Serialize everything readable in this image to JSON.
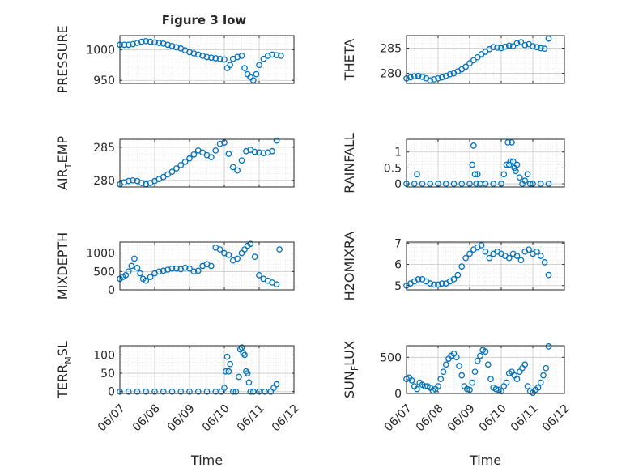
{
  "figure_title": "Figure 3 low",
  "colors": {
    "marker": "#0072BD",
    "axes": "#262626",
    "grid": "#dcdcdc",
    "background": "#ffffff"
  },
  "chart_data": [
    {
      "type": "scatter",
      "ylabel": "PRESSURE",
      "xlabel": "",
      "ylim": [
        945,
        1023
      ],
      "yticks": [
        950,
        1000
      ],
      "x": [
        "06/07 00:00",
        "06/07 03:00",
        "06/07 06:00",
        "06/07 09:00",
        "06/07 12:00",
        "06/07 15:00",
        "06/07 18:00",
        "06/07 21:00",
        "06/08 00:00",
        "06/08 03:00",
        "06/08 06:00",
        "06/08 09:00",
        "06/08 12:00",
        "06/08 15:00",
        "06/08 18:00",
        "06/08 21:00",
        "06/09 00:00",
        "06/09 03:00",
        "06/09 06:00",
        "06/09 09:00",
        "06/09 12:00",
        "06/09 15:00",
        "06/09 18:00",
        "06/09 21:00",
        "06/10 00:00",
        "06/10 02:00",
        "06/10 04:00",
        "06/10 06:00",
        "06/10 09:00",
        "06/10 12:00",
        "06/10 14:00",
        "06/10 16:00",
        "06/10 18:00",
        "06/10 20:00",
        "06/10 22:00",
        "06/11 00:00",
        "06/11 03:00",
        "06/11 06:00",
        "06/11 09:00",
        "06/11 12:00",
        "06/11 15:00"
      ],
      "y": [
        1008,
        1008,
        1008,
        1009,
        1011,
        1013,
        1014,
        1013,
        1012,
        1011,
        1010,
        1008,
        1006,
        1004,
        1002,
        999,
        996,
        994,
        992,
        990,
        988,
        987,
        986,
        985,
        984,
        970,
        975,
        985,
        988,
        990,
        970,
        960,
        955,
        950,
        960,
        975,
        985,
        990,
        992,
        991,
        990
      ]
    },
    {
      "type": "scatter",
      "ylabel": "THETA",
      "xlabel": "",
      "ylim": [
        278,
        287.5
      ],
      "yticks": [
        280,
        285
      ],
      "x": [
        "06/07 00:00",
        "06/07 03:00",
        "06/07 06:00",
        "06/07 09:00",
        "06/07 12:00",
        "06/07 15:00",
        "06/07 18:00",
        "06/07 21:00",
        "06/08 00:00",
        "06/08 03:00",
        "06/08 06:00",
        "06/08 09:00",
        "06/08 12:00",
        "06/08 15:00",
        "06/08 18:00",
        "06/08 21:00",
        "06/09 00:00",
        "06/09 03:00",
        "06/09 06:00",
        "06/09 09:00",
        "06/09 12:00",
        "06/09 15:00",
        "06/09 18:00",
        "06/09 21:00",
        "06/10 00:00",
        "06/10 03:00",
        "06/10 06:00",
        "06/10 09:00",
        "06/10 12:00",
        "06/10 15:00",
        "06/10 18:00",
        "06/10 21:00",
        "06/11 00:00",
        "06/11 03:00",
        "06/11 06:00",
        "06/11 09:00",
        "06/11 12:00"
      ],
      "y": [
        279,
        279.2,
        279.4,
        279.5,
        279.3,
        279,
        278.6,
        278.8,
        279,
        279.2,
        279.5,
        279.8,
        280,
        280.4,
        280.8,
        281.3,
        282,
        282.6,
        283.2,
        283.8,
        284.3,
        284.8,
        285.2,
        285.1,
        285,
        285.3,
        285.5,
        285.4,
        286,
        286.2,
        285.6,
        285.8,
        285.4,
        285.2,
        285,
        284.9,
        286.9
      ]
    },
    {
      "type": "scatter",
      "ylabel": "AIR_TEMP",
      "xlabel": "",
      "ylim": [
        279,
        286.2
      ],
      "yticks": [
        280,
        285
      ],
      "x": [
        "06/07 00:00",
        "06/07 03:00",
        "06/07 06:00",
        "06/07 09:00",
        "06/07 12:00",
        "06/07 15:00",
        "06/07 18:00",
        "06/07 21:00",
        "06/08 00:00",
        "06/08 03:00",
        "06/08 06:00",
        "06/08 09:00",
        "06/08 12:00",
        "06/08 15:00",
        "06/08 18:00",
        "06/08 21:00",
        "06/09 00:00",
        "06/09 03:00",
        "06/09 06:00",
        "06/09 09:00",
        "06/09 12:00",
        "06/09 15:00",
        "06/09 18:00",
        "06/09 21:00",
        "06/10 00:00",
        "06/10 03:00",
        "06/10 06:00",
        "06/10 09:00",
        "06/10 12:00",
        "06/10 15:00",
        "06/10 18:00",
        "06/10 21:00",
        "06/11 00:00",
        "06/11 03:00",
        "06/11 06:00",
        "06/11 09:00",
        "06/11 12:00"
      ],
      "y": [
        279.4,
        279.7,
        279.9,
        280,
        279.9,
        279.6,
        279.4,
        279.6,
        279.9,
        280.2,
        280.5,
        280.9,
        281.3,
        281.8,
        282.3,
        282.8,
        283.3,
        283.9,
        284.5,
        284.2,
        283.8,
        283.5,
        284.5,
        285.5,
        285.7,
        284,
        282,
        281.5,
        283,
        284.4,
        284.6,
        284.3,
        284.2,
        284.1,
        284.2,
        284.4,
        286
      ]
    },
    {
      "type": "scatter",
      "ylabel": "RAINFALL",
      "xlabel": "",
      "ylim": [
        -0.1,
        1.4
      ],
      "yticks": [
        0,
        0.5,
        1
      ],
      "x": [
        "06/07 00:00",
        "06/07 06:00",
        "06/07 08:00",
        "06/07 12:00",
        "06/07 18:00",
        "06/08 00:00",
        "06/08 06:00",
        "06/08 12:00",
        "06/08 18:00",
        "06/09 00:00",
        "06/09 02:00",
        "06/09 03:00",
        "06/09 04:00",
        "06/09 05:00",
        "06/09 06:00",
        "06/09 08:00",
        "06/09 12:00",
        "06/09 18:00",
        "06/10 00:00",
        "06/10 02:00",
        "06/10 04:00",
        "06/10 05:00",
        "06/10 06:00",
        "06/10 07:00",
        "06/10 08:00",
        "06/10 09:00",
        "06/10 10:00",
        "06/10 11:00",
        "06/10 12:00",
        "06/10 14:00",
        "06/10 16:00",
        "06/10 18:00",
        "06/10 20:00",
        "06/10 22:00",
        "06/11 00:00",
        "06/11 06:00",
        "06/11 12:00"
      ],
      "y": [
        0,
        0,
        0.3,
        0,
        0,
        0,
        0,
        0,
        0,
        0,
        0.6,
        1.2,
        0.3,
        0,
        0.3,
        0,
        0,
        0,
        0,
        0.3,
        0.6,
        1.3,
        0.6,
        0.7,
        1.3,
        0.7,
        0.5,
        0.4,
        0.6,
        0.2,
        0,
        0.1,
        0.3,
        0,
        0,
        0,
        0
      ]
    },
    {
      "type": "scatter",
      "ylabel": "MIXDEPTH",
      "xlabel": "",
      "ylim": [
        0,
        1300
      ],
      "yticks": [
        0,
        500,
        1000
      ],
      "x": [
        "06/07 00:00",
        "06/07 02:00",
        "06/07 04:00",
        "06/07 06:00",
        "06/07 08:00",
        "06/07 10:00",
        "06/07 12:00",
        "06/07 14:00",
        "06/07 16:00",
        "06/07 18:00",
        "06/07 21:00",
        "06/08 00:00",
        "06/08 03:00",
        "06/08 06:00",
        "06/08 09:00",
        "06/08 12:00",
        "06/08 15:00",
        "06/08 18:00",
        "06/08 21:00",
        "06/09 00:00",
        "06/09 03:00",
        "06/09 06:00",
        "06/09 09:00",
        "06/09 12:00",
        "06/09 15:00",
        "06/09 18:00",
        "06/09 21:00",
        "06/10 00:00",
        "06/10 03:00",
        "06/10 06:00",
        "06/10 09:00",
        "06/10 12:00",
        "06/10 14:00",
        "06/10 16:00",
        "06/10 18:00",
        "06/10 21:00",
        "06/11 00:00",
        "06/11 03:00",
        "06/11 06:00",
        "06/11 09:00",
        "06/11 12:00",
        "06/11 14:00"
      ],
      "y": [
        300,
        350,
        400,
        500,
        650,
        850,
        600,
        450,
        300,
        250,
        350,
        450,
        500,
        520,
        550,
        580,
        580,
        560,
        600,
        580,
        500,
        520,
        650,
        700,
        650,
        1150,
        1100,
        1000,
        950,
        800,
        850,
        1000,
        1100,
        1200,
        1250,
        900,
        400,
        300,
        250,
        200,
        150,
        1100
      ]
    },
    {
      "type": "scatter",
      "ylabel": "H2OMIXRA",
      "xlabel": "",
      "ylim": [
        4.8,
        7.05
      ],
      "yticks": [
        5,
        6,
        7
      ],
      "x": [
        "06/07 00:00",
        "06/07 03:00",
        "06/07 06:00",
        "06/07 09:00",
        "06/07 12:00",
        "06/07 15:00",
        "06/07 18:00",
        "06/07 21:00",
        "06/08 00:00",
        "06/08 03:00",
        "06/08 06:00",
        "06/08 09:00",
        "06/08 12:00",
        "06/08 15:00",
        "06/08 18:00",
        "06/08 21:00",
        "06/09 00:00",
        "06/09 03:00",
        "06/09 06:00",
        "06/09 09:00",
        "06/09 12:00",
        "06/09 15:00",
        "06/09 18:00",
        "06/09 21:00",
        "06/10 00:00",
        "06/10 03:00",
        "06/10 06:00",
        "06/10 09:00",
        "06/10 12:00",
        "06/10 15:00",
        "06/10 18:00",
        "06/10 21:00",
        "06/11 00:00",
        "06/11 03:00",
        "06/11 06:00",
        "06/11 09:00",
        "06/11 12:00"
      ],
      "y": [
        5,
        5.1,
        5.2,
        5.3,
        5.3,
        5.2,
        5.1,
        5.05,
        5.05,
        5.1,
        5.1,
        5.2,
        5.3,
        5.5,
        5.9,
        6.3,
        6.5,
        6.7,
        6.8,
        6.9,
        6.6,
        6.3,
        6.5,
        6.6,
        6.5,
        6.4,
        6.3,
        6.5,
        6.4,
        6.2,
        6.6,
        6.7,
        6.5,
        6.6,
        6.4,
        6.1,
        5.5
      ]
    },
    {
      "type": "scatter",
      "ylabel": "TERR_MSL",
      "xlabel": "Time",
      "ylim": [
        -5,
        125
      ],
      "yticks": [
        0,
        50,
        100
      ],
      "x": [
        "06/07 00:00",
        "06/07 06:00",
        "06/07 12:00",
        "06/07 18:00",
        "06/08 00:00",
        "06/08 06:00",
        "06/08 12:00",
        "06/08 18:00",
        "06/09 00:00",
        "06/09 06:00",
        "06/09 12:00",
        "06/09 18:00",
        "06/09 22:00",
        "06/10 00:00",
        "06/10 01:00",
        "06/10 02:00",
        "06/10 03:00",
        "06/10 04:00",
        "06/10 06:00",
        "06/10 08:00",
        "06/10 10:00",
        "06/10 11:00",
        "06/10 12:00",
        "06/10 13:00",
        "06/10 14:00",
        "06/10 15:00",
        "06/10 16:00",
        "06/10 17:00",
        "06/10 18:00",
        "06/10 20:00",
        "06/11 00:00",
        "06/11 04:00",
        "06/11 08:00",
        "06/11 10:00",
        "06/11 12:00"
      ],
      "y": [
        0,
        0,
        0,
        0,
        0,
        0,
        0,
        0,
        0,
        0,
        0,
        0,
        0,
        10,
        55,
        95,
        55,
        75,
        0,
        0,
        40,
        115,
        120,
        105,
        100,
        55,
        50,
        25,
        0,
        0,
        0,
        0,
        0,
        10,
        20
      ]
    },
    {
      "type": "scatter",
      "ylabel": "SUN_FLUX",
      "xlabel": "Time",
      "ylim": [
        0,
        660
      ],
      "yticks": [
        0,
        500
      ],
      "x": [
        "06/07 00:00",
        "06/07 02:00",
        "06/07 04:00",
        "06/07 06:00",
        "06/07 08:00",
        "06/07 10:00",
        "06/07 12:00",
        "06/07 14:00",
        "06/07 16:00",
        "06/07 18:00",
        "06/07 20:00",
        "06/07 22:00",
        "06/08 00:00",
        "06/08 02:00",
        "06/08 04:00",
        "06/08 06:00",
        "06/08 08:00",
        "06/08 10:00",
        "06/08 12:00",
        "06/08 14:00",
        "06/08 16:00",
        "06/08 18:00",
        "06/08 20:00",
        "06/08 22:00",
        "06/09 00:00",
        "06/09 02:00",
        "06/09 04:00",
        "06/09 06:00",
        "06/09 08:00",
        "06/09 10:00",
        "06/09 12:00",
        "06/09 14:00",
        "06/09 16:00",
        "06/09 18:00",
        "06/09 20:00",
        "06/09 22:00",
        "06/10 00:00",
        "06/10 02:00",
        "06/10 04:00",
        "06/10 06:00",
        "06/10 08:00",
        "06/10 10:00",
        "06/10 12:00",
        "06/10 14:00",
        "06/10 16:00",
        "06/10 18:00",
        "06/10 20:00",
        "06/10 22:00",
        "06/11 00:00",
        "06/11 02:00",
        "06/11 04:00",
        "06/11 06:00",
        "06/11 08:00",
        "06/11 10:00",
        "06/11 12:00"
      ],
      "y": [
        200,
        220,
        180,
        100,
        60,
        150,
        120,
        100,
        100,
        80,
        40,
        60,
        100,
        200,
        300,
        400,
        480,
        520,
        550,
        500,
        380,
        250,
        100,
        60,
        50,
        150,
        300,
        450,
        520,
        600,
        580,
        400,
        200,
        80,
        60,
        50,
        30,
        100,
        150,
        280,
        300,
        250,
        200,
        300,
        350,
        400,
        100,
        30,
        10,
        50,
        80,
        150,
        250,
        350,
        650
      ]
    }
  ],
  "shared_x": {
    "ticks": [
      "06/07",
      "06/08",
      "06/09",
      "06/10",
      "06/11",
      "06/12"
    ]
  }
}
